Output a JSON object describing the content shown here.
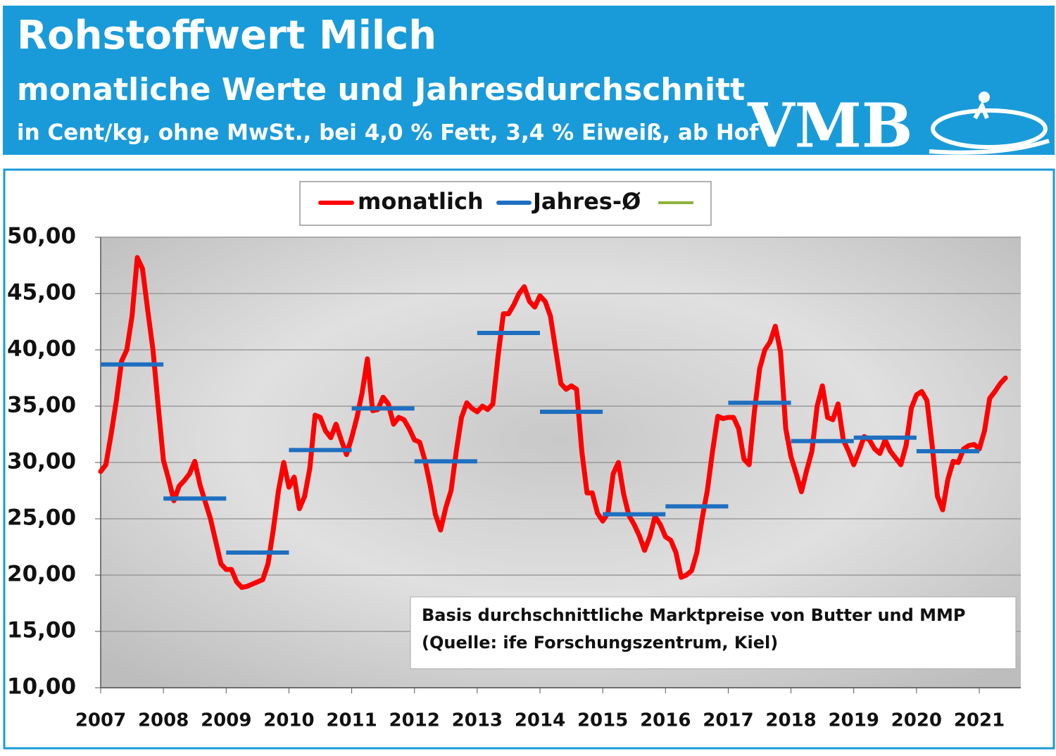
{
  "header": {
    "title": "Rohstoffwert Milch",
    "subtitle": "monatliche Werte und Jahresdurchschnitt",
    "note": "in Cent/kg, ohne MwSt., bei 4,0 % Fett, 3,4 % Eiweiß, ab Hof",
    "logo": "VMB"
  },
  "chart_data": {
    "type": "line",
    "categories": [
      "2007",
      null,
      null,
      null,
      null,
      null,
      null,
      null,
      null,
      null,
      null,
      null,
      "2008",
      null,
      null,
      null,
      null,
      null,
      null,
      null,
      null,
      null,
      null,
      null,
      "2009",
      null,
      null,
      null,
      null,
      null,
      null,
      null,
      null,
      null,
      null,
      null,
      "2010",
      null,
      null,
      null,
      null,
      null,
      null,
      null,
      null,
      null,
      null,
      null,
      "2011",
      null,
      null,
      null,
      null,
      null,
      null,
      null,
      null,
      null,
      null,
      null,
      "2012",
      null,
      null,
      null,
      null,
      null,
      null,
      null,
      null,
      null,
      null,
      null,
      "2013",
      null,
      null,
      null,
      null,
      null,
      null,
      null,
      null,
      null,
      null,
      null,
      "2014",
      null,
      null,
      null,
      null,
      null,
      null,
      null,
      null,
      null,
      null,
      null,
      "2015",
      null,
      null,
      null,
      null,
      null,
      null,
      null,
      null,
      null,
      null,
      null,
      "2016",
      null,
      null,
      null,
      null,
      null,
      null,
      null,
      null,
      null,
      null,
      null,
      "2017",
      null,
      null,
      null,
      null,
      null,
      null,
      null,
      null,
      null,
      null,
      null,
      "2018",
      null,
      null,
      null,
      null,
      null,
      null,
      null,
      null,
      null,
      null,
      null,
      "2019",
      null,
      null,
      null,
      null,
      null,
      null,
      null,
      null,
      null,
      null,
      null,
      "2020",
      null,
      null,
      null,
      null,
      null,
      null,
      null,
      null,
      null,
      null,
      null,
      "2021",
      null,
      null,
      null,
      null,
      null
    ],
    "series": [
      {
        "name": "monatlich",
        "color": "#ff0000",
        "values": [
          29.2,
          29.8,
          32.5,
          35.5,
          39,
          40,
          43,
          48.2,
          47.2,
          43.5,
          40,
          35,
          30.2,
          28.5,
          26.6,
          27.9,
          28.4,
          29,
          30.1,
          28,
          26.5,
          25,
          23,
          21,
          20.5,
          20.5,
          19.4,
          18.9,
          19,
          19.2,
          19.4,
          19.6,
          21,
          24,
          27.5,
          30,
          27.8,
          28.7,
          25.9,
          27,
          29.5,
          34.2,
          34,
          32.8,
          32.2,
          33.4,
          32,
          30.7,
          32.2,
          34,
          36.2,
          39.2,
          34.6,
          34.7,
          35.8,
          35.2,
          33.4,
          34,
          33.8,
          33,
          32,
          31.8,
          30.2,
          28,
          25.4,
          24,
          26,
          27.5,
          31,
          34,
          35.3,
          34.8,
          34.5,
          35,
          34.7,
          35.2,
          39.5,
          43.2,
          43.2,
          44,
          45,
          45.6,
          44.3,
          43.8,
          44.8,
          44.3,
          43,
          40,
          37,
          36.5,
          36.8,
          36.5,
          31,
          27.3,
          27.3,
          25.5,
          24.8,
          25.5,
          29,
          30,
          27.2,
          25.3,
          24.5,
          23.5,
          22.2,
          23.4,
          25.2,
          24.5,
          23.4,
          23.1,
          22,
          19.8,
          20,
          20.4,
          22,
          25,
          27.5,
          31,
          34.1,
          33.9,
          34,
          34,
          33,
          30.3,
          29.8,
          34.5,
          38.3,
          40,
          40.7,
          42.1,
          39.8,
          33,
          30.5,
          29,
          27.4,
          29.3,
          31,
          35,
          36.8,
          34,
          33.8,
          35.2,
          32,
          31,
          29.8,
          31,
          32.3,
          32,
          31.2,
          30.8,
          32,
          31,
          30.4,
          29.8,
          31.5,
          34.8,
          36,
          36.3,
          35.5,
          31.5,
          27,
          25.8,
          28.5,
          30.1,
          30,
          31.2,
          31.5,
          31.6,
          31.2,
          32.8,
          35.7,
          36.3,
          37,
          37.5
        ]
      },
      {
        "name": "Jahres-Ø",
        "color": "#1f6fc0",
        "values": [
          38.7,
          null,
          null,
          null,
          null,
          null,
          null,
          null,
          null,
          null,
          null,
          null,
          26.8,
          null,
          null,
          null,
          null,
          null,
          null,
          null,
          null,
          null,
          null,
          null,
          22,
          null,
          null,
          null,
          null,
          null,
          null,
          null,
          null,
          null,
          null,
          null,
          31.1,
          null,
          null,
          null,
          null,
          null,
          null,
          null,
          null,
          null,
          null,
          null,
          34.8,
          null,
          null,
          null,
          null,
          null,
          null,
          null,
          null,
          null,
          null,
          null,
          30.1,
          null,
          null,
          null,
          null,
          null,
          null,
          null,
          null,
          null,
          null,
          null,
          41.5,
          null,
          null,
          null,
          null,
          null,
          null,
          null,
          null,
          null,
          null,
          null,
          34.5,
          null,
          null,
          null,
          null,
          null,
          null,
          null,
          null,
          null,
          null,
          null,
          25.4,
          null,
          null,
          null,
          null,
          null,
          null,
          null,
          null,
          null,
          null,
          null,
          26.1,
          null,
          null,
          null,
          null,
          null,
          null,
          null,
          null,
          null,
          null,
          null,
          35.3,
          null,
          null,
          null,
          null,
          null,
          null,
          null,
          null,
          null,
          null,
          null,
          31.9,
          null,
          null,
          null,
          null,
          null,
          null,
          null,
          null,
          null,
          null,
          null,
          32.2,
          null,
          null,
          null,
          null,
          null,
          null,
          null,
          null,
          null,
          null,
          null,
          31,
          null,
          null,
          null,
          null,
          null,
          null,
          null,
          null,
          null,
          null,
          null,
          null,
          null,
          null,
          null,
          null,
          null
        ]
      }
    ],
    "ylim": [
      10,
      50
    ],
    "yticks": [
      {
        "value": 10,
        "label": "10,00"
      },
      {
        "value": 15,
        "label": "15,00"
      },
      {
        "value": 20,
        "label": "20,00"
      },
      {
        "value": 25,
        "label": "25,00"
      },
      {
        "value": 30,
        "label": "30,00"
      },
      {
        "value": 35,
        "label": "35,00"
      },
      {
        "value": 40,
        "label": "40,00"
      },
      {
        "value": 45,
        "label": "45,00"
      },
      {
        "value": 50,
        "label": "50,00"
      }
    ],
    "grid": true,
    "annotation": [
      "Basis durchschnittliche  Marktpreise von Butter und MMP",
      "(Quelle: ife Forschungszentrum, Kiel)"
    ]
  }
}
